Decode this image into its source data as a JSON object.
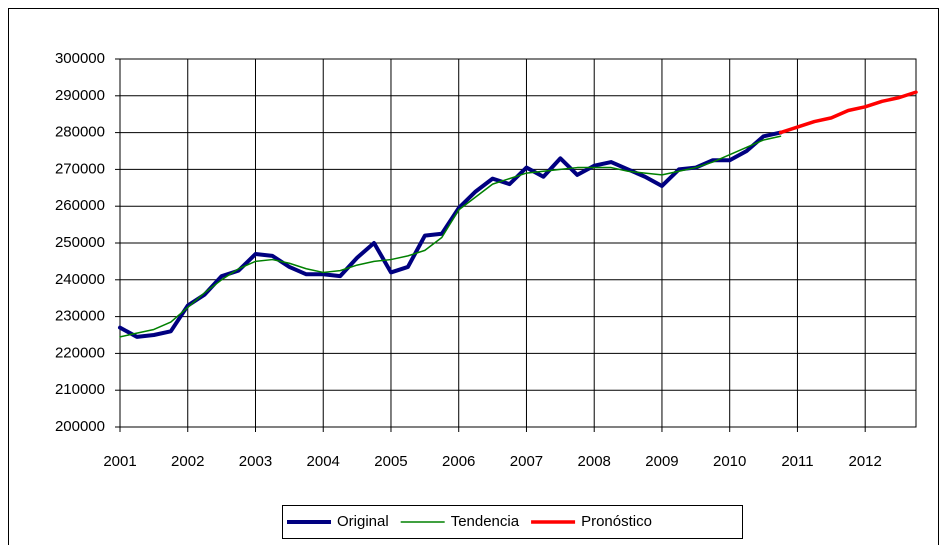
{
  "chart_data": {
    "type": "line",
    "x": [
      2001,
      2001.25,
      2001.5,
      2001.75,
      2002,
      2002.25,
      2002.5,
      2002.75,
      2003,
      2003.25,
      2003.5,
      2003.75,
      2004,
      2004.25,
      2004.5,
      2004.75,
      2005,
      2005.25,
      2005.5,
      2005.75,
      2006,
      2006.25,
      2006.5,
      2006.75,
      2007,
      2007.25,
      2007.5,
      2007.75,
      2008,
      2008.25,
      2008.5,
      2008.75,
      2009,
      2009.25,
      2009.5,
      2009.75,
      2010,
      2010.25,
      2010.5,
      2010.75,
      2011,
      2011.25,
      2011.5,
      2011.75,
      2012,
      2012.25,
      2012.5,
      2012.75
    ],
    "series": [
      {
        "name": "Original",
        "color": "#000080",
        "values": [
          227000,
          224500,
          225000,
          226000,
          233000,
          236000,
          241000,
          242500,
          247000,
          246500,
          243500,
          241500,
          241500,
          241000,
          246000,
          250000,
          242000,
          243500,
          252000,
          252500,
          259500,
          264000,
          267500,
          266000,
          270500,
          268000,
          273000,
          268500,
          271000,
          272000,
          270000,
          268000,
          265500,
          270000,
          270500,
          272500,
          272500,
          275000,
          279000,
          280000,
          null,
          null,
          null,
          null,
          null,
          null,
          null,
          null
        ]
      },
      {
        "name": "Tendencia",
        "color": "#008000",
        "values": [
          224500,
          225500,
          226500,
          228500,
          232500,
          236500,
          240000,
          243000,
          245000,
          245500,
          244500,
          243000,
          242000,
          242500,
          244000,
          245000,
          245500,
          246500,
          248000,
          251500,
          259000,
          262500,
          266000,
          267500,
          269000,
          269500,
          270000,
          270500,
          270500,
          270500,
          269500,
          269000,
          268500,
          269500,
          270500,
          272000,
          274000,
          276000,
          278000,
          279000,
          null,
          null,
          null,
          null,
          null,
          null,
          null,
          null
        ]
      },
      {
        "name": "Pronóstico",
        "color": "#ff0000",
        "values": [
          null,
          null,
          null,
          null,
          null,
          null,
          null,
          null,
          null,
          null,
          null,
          null,
          null,
          null,
          null,
          null,
          null,
          null,
          null,
          null,
          null,
          null,
          null,
          null,
          null,
          null,
          null,
          null,
          null,
          null,
          null,
          null,
          null,
          null,
          null,
          null,
          null,
          null,
          null,
          280000,
          281500,
          283000,
          284000,
          286000,
          287000,
          288500,
          289500,
          291000
        ]
      }
    ],
    "xlim": [
      2001,
      2012.75
    ],
    "xticks": [
      2001,
      2002,
      2003,
      2004,
      2005,
      2006,
      2007,
      2008,
      2009,
      2010,
      2011,
      2012
    ],
    "ylim": [
      200000,
      300000
    ],
    "yticks": [
      200000,
      210000,
      220000,
      230000,
      240000,
      250000,
      260000,
      270000,
      280000,
      290000,
      300000
    ],
    "grid": true,
    "legend": "bottom"
  }
}
